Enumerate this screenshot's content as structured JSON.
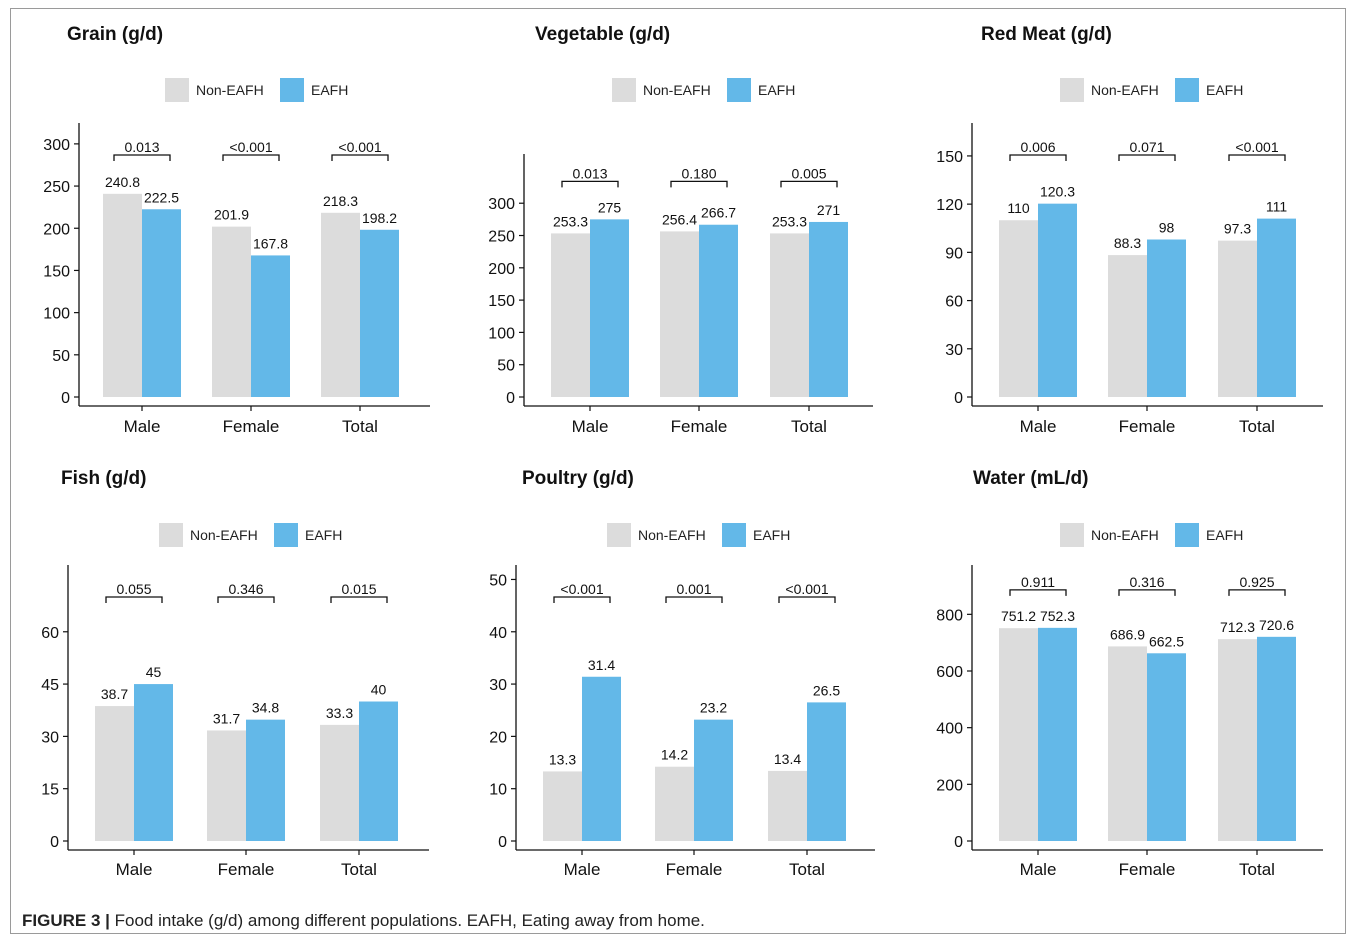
{
  "figure": {
    "label": "FIGURE 3 |",
    "caption": "Food intake (g/d) among different populations. EAFH, Eating away from home."
  },
  "colors": {
    "non_eafh": "#dcdcdc",
    "eafh": "#63b8e8"
  },
  "chart_data": [
    {
      "type": "bar",
      "title": "Grain (g/d)",
      "categories": [
        "Male",
        "Female",
        "Total"
      ],
      "series": [
        {
          "name": "Non-EAFH",
          "values": [
            240.8,
            201.9,
            218.3
          ]
        },
        {
          "name": "EAFH",
          "values": [
            222.5,
            167.8,
            198.2
          ]
        }
      ],
      "data_labels": [
        [
          "240.8",
          "201.9",
          "218.3"
        ],
        [
          "222.5",
          "167.8",
          "198.2"
        ]
      ],
      "p_values": [
        "0.013",
        "<0.001",
        "<0.001"
      ],
      "yticks": [
        0,
        50,
        100,
        150,
        200,
        250,
        300
      ],
      "ylim": [
        0,
        320
      ],
      "legend": "top"
    },
    {
      "type": "bar",
      "title": "Vegetable (g/d)",
      "categories": [
        "Male",
        "Female",
        "Total"
      ],
      "series": [
        {
          "name": "Non-EAFH",
          "values": [
            253.3,
            256.4,
            253.3
          ]
        },
        {
          "name": "EAFH",
          "values": [
            275,
            266.7,
            271
          ]
        }
      ],
      "data_labels": [
        [
          "253.3",
          "256.4",
          "253.3"
        ],
        [
          "275",
          "266.7",
          "271"
        ]
      ],
      "p_values": [
        "0.013",
        "0.180",
        "0.005"
      ],
      "yticks": [
        0,
        50,
        100,
        150,
        200,
        250,
        300
      ],
      "ylim": [
        0,
        370
      ],
      "legend": "top"
    },
    {
      "type": "bar",
      "title": "Red Meat (g/d)",
      "categories": [
        "Male",
        "Female",
        "Total"
      ],
      "series": [
        {
          "name": "Non-EAFH",
          "values": [
            110,
            88.3,
            97.3
          ]
        },
        {
          "name": "EAFH",
          "values": [
            120.3,
            98,
            111
          ]
        }
      ],
      "data_labels": [
        [
          "110",
          "88.3",
          "97.3"
        ],
        [
          "120.3",
          "98",
          "111"
        ]
      ],
      "p_values": [
        "0.006",
        "0.071",
        "<0.001"
      ],
      "yticks": [
        0,
        30,
        60,
        90,
        120,
        150
      ],
      "ylim": [
        0,
        168
      ],
      "legend": "top"
    },
    {
      "type": "bar",
      "title": "Fish (g/d)",
      "categories": [
        "Male",
        "Female",
        "Total"
      ],
      "series": [
        {
          "name": "Non-EAFH",
          "values": [
            38.7,
            31.7,
            33.3
          ]
        },
        {
          "name": "EAFH",
          "values": [
            45,
            34.8,
            40
          ]
        }
      ],
      "data_labels": [
        [
          "38.7",
          "31.7",
          "33.3"
        ],
        [
          "45",
          "34.8",
          "40"
        ]
      ],
      "p_values": [
        "0.055",
        "0.346",
        "0.015"
      ],
      "yticks": [
        0,
        15,
        30,
        45,
        60
      ],
      "ylim": [
        0,
        78
      ],
      "legend": "top"
    },
    {
      "type": "bar",
      "title": "Poultry (g/d)",
      "categories": [
        "Male",
        "Female",
        "Total"
      ],
      "series": [
        {
          "name": "Non-EAFH",
          "values": [
            13.3,
            14.2,
            13.4
          ]
        },
        {
          "name": "EAFH",
          "values": [
            31.4,
            23.2,
            26.5
          ]
        }
      ],
      "data_labels": [
        [
          "13.3",
          "14.2",
          "13.4"
        ],
        [
          "31.4",
          "23.2",
          "26.5"
        ]
      ],
      "p_values": [
        "<0.001",
        "0.001",
        "<0.001"
      ],
      "yticks": [
        0,
        10,
        20,
        30,
        40,
        50
      ],
      "ylim": [
        0,
        52
      ],
      "legend": "top"
    },
    {
      "type": "bar",
      "title": "Water (mL/d)",
      "categories": [
        "Male",
        "Female",
        "Total"
      ],
      "series": [
        {
          "name": "Non-EAFH",
          "values": [
            751.2,
            686.9,
            712.3
          ]
        },
        {
          "name": "EAFH",
          "values": [
            752.3,
            662.5,
            720.6
          ]
        }
      ],
      "data_labels": [
        [
          "751.2",
          "686.9",
          "712.3"
        ],
        [
          "752.3",
          "662.5",
          "720.6"
        ]
      ],
      "p_values": [
        "0.911",
        "0.316",
        "0.925"
      ],
      "yticks": [
        0,
        200,
        400,
        600,
        800
      ],
      "ylim": [
        0,
        960
      ],
      "legend": "top"
    }
  ]
}
